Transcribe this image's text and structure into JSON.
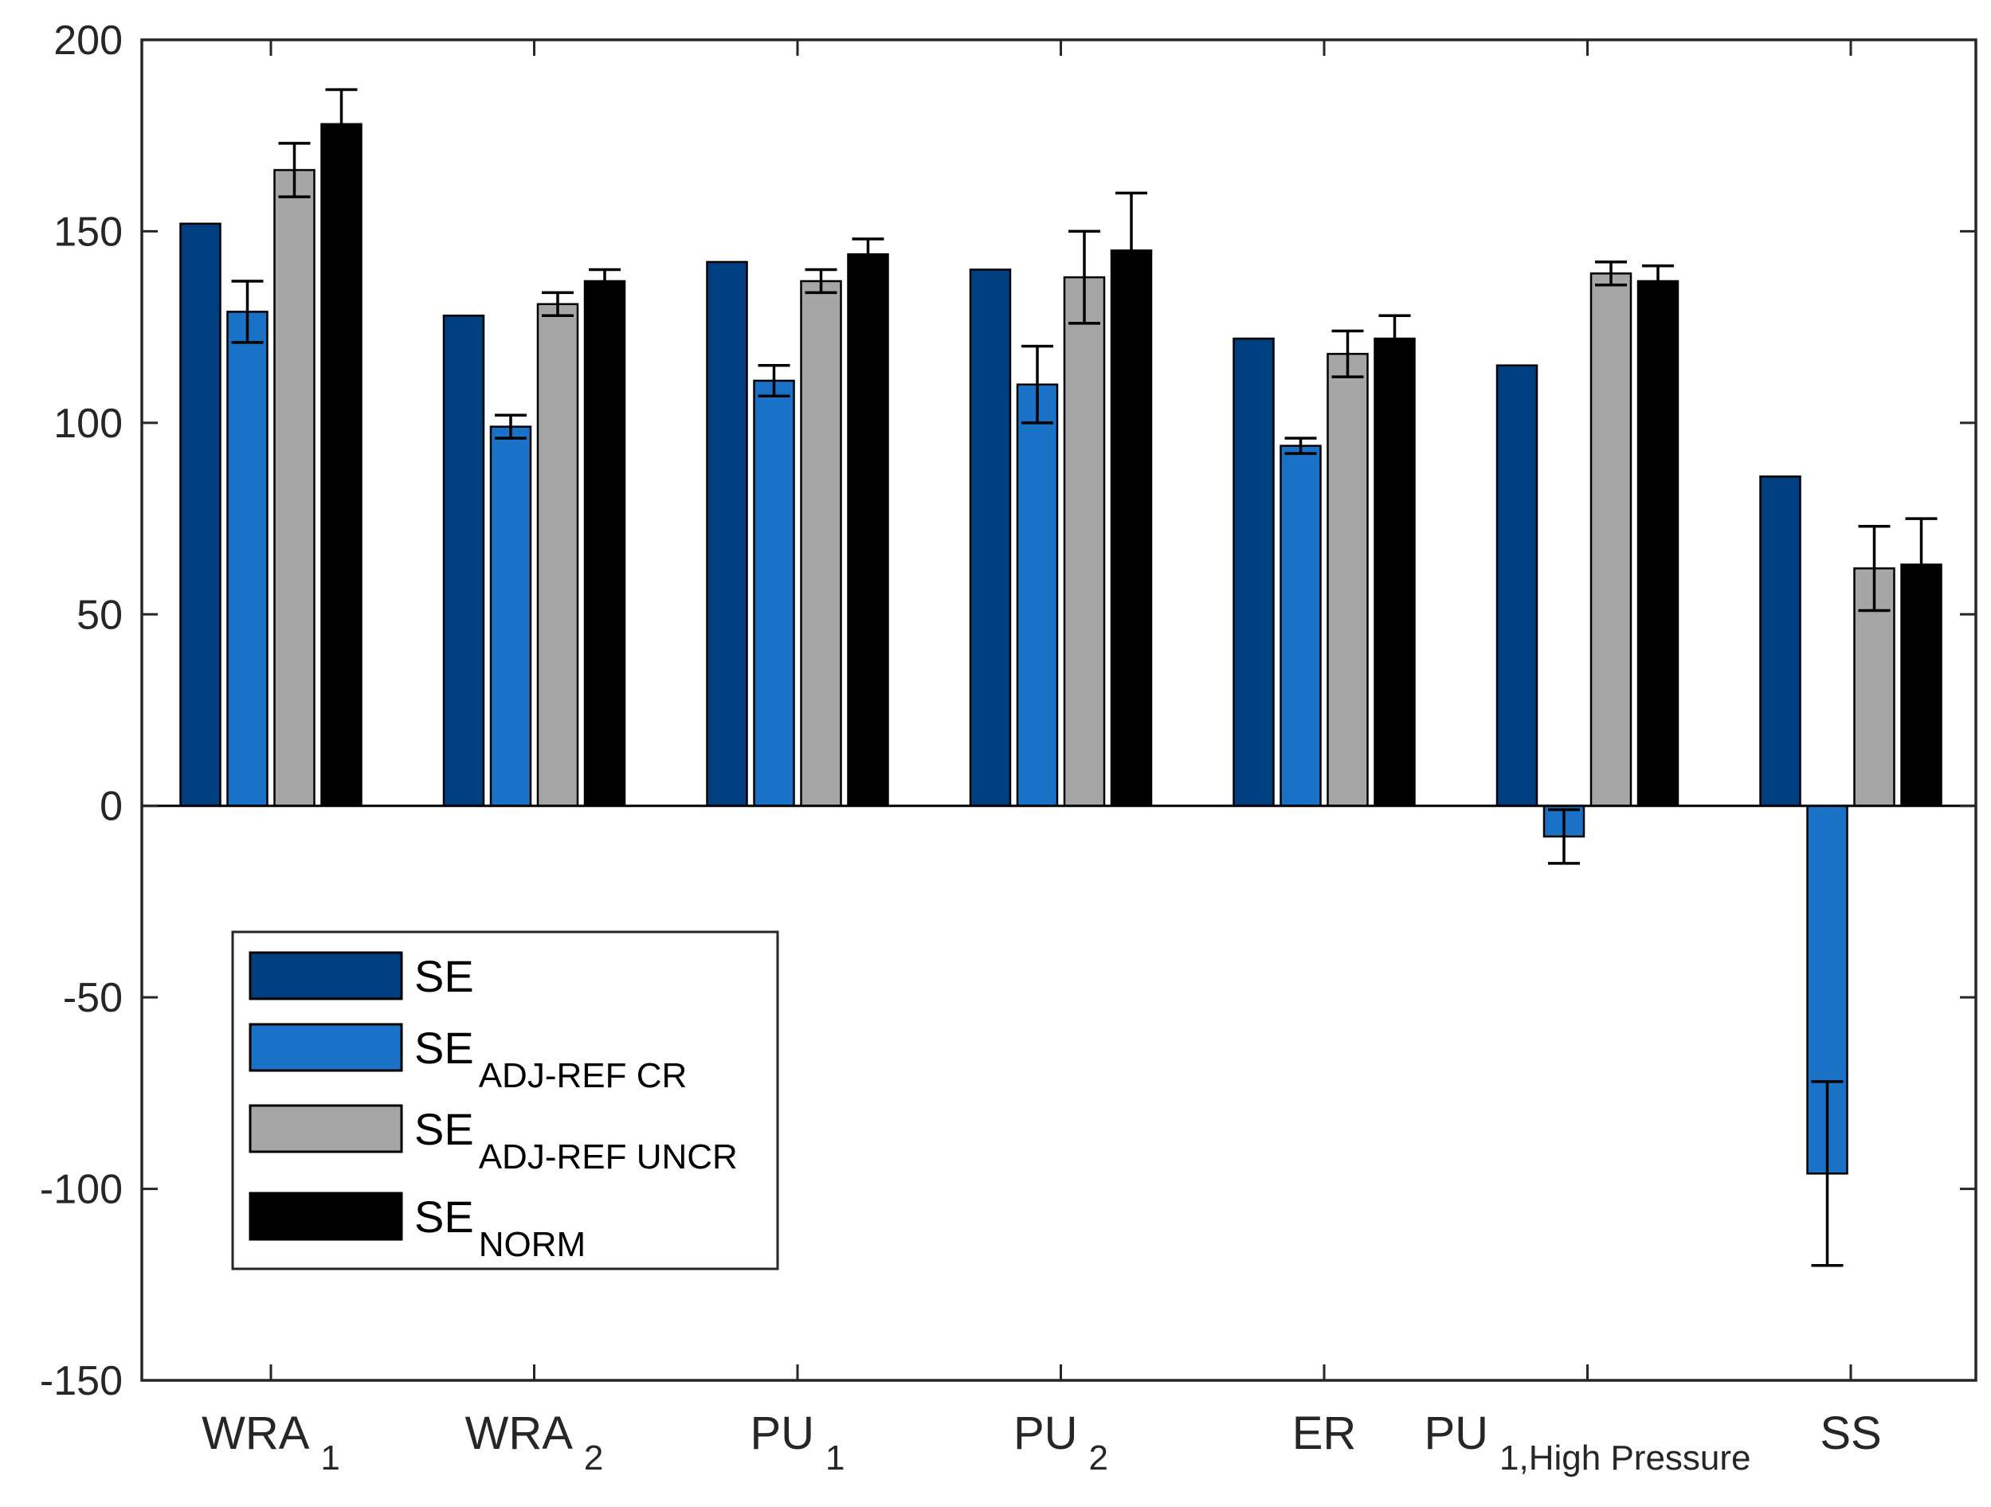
{
  "chart_data": {
    "type": "bar",
    "title": "",
    "xlabel": "",
    "ylabel": "",
    "ylim": [
      -150,
      200
    ],
    "yticks": [
      -150,
      -100,
      -50,
      0,
      50,
      100,
      150,
      200
    ],
    "ytick_labels": [
      "-150",
      "-100",
      "-50",
      "0",
      "50",
      "100",
      "150",
      "200"
    ],
    "categories": [
      {
        "base": "WRA",
        "sub": "1"
      },
      {
        "base": "WRA",
        "sub": "2"
      },
      {
        "base": "PU",
        "sub": "1"
      },
      {
        "base": "PU",
        "sub": "2"
      },
      {
        "base": "ER",
        "sub": ""
      },
      {
        "base": "PU",
        "sub": "1,High Pressure"
      },
      {
        "base": "SS",
        "sub": ""
      }
    ],
    "series": [
      {
        "name": "SE",
        "base": "SE",
        "sub": "",
        "color": "#003f7f",
        "values": [
          152,
          128,
          142,
          140,
          122,
          115,
          86
        ],
        "errors": [
          null,
          null,
          null,
          null,
          null,
          null,
          null
        ]
      },
      {
        "name": "SE ADJ-REF CR",
        "base": "SE",
        "sub": "ADJ-REF CR",
        "color": "#1a72c6",
        "values": [
          129,
          99,
          111,
          110,
          94,
          -8,
          -96
        ],
        "errors": [
          8,
          3,
          4,
          10,
          2,
          7,
          24
        ]
      },
      {
        "name": "SE ADJ-REF UNCR",
        "base": "SE",
        "sub": "ADJ-REF UNCR",
        "color": "#a6a6a6",
        "values": [
          166,
          131,
          137,
          138,
          118,
          139,
          62
        ],
        "errors": [
          7,
          3,
          3,
          12,
          6,
          3,
          11
        ]
      },
      {
        "name": "SE NORM",
        "base": "SE",
        "sub": "NORM",
        "color": "#000000",
        "values": [
          178,
          137,
          144,
          145,
          122,
          137,
          63
        ],
        "errors": [
          9,
          3,
          4,
          15,
          6,
          4,
          12
        ]
      }
    ],
    "grid": false,
    "legend_position": "lower-left",
    "error_bars": true
  }
}
